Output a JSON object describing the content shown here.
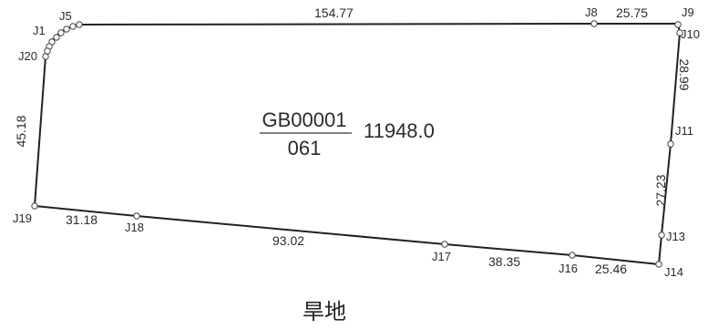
{
  "parcel": {
    "code": "GB00001",
    "number": "061",
    "area": "11948.0",
    "land_use": "旱地"
  },
  "points": [
    "J1",
    "J5",
    "J8",
    "J9",
    "J10",
    "J11",
    "J13",
    "J14",
    "J16",
    "J17",
    "J18",
    "J19",
    "J20"
  ],
  "edge_lengths": {
    "j5_j8": "154.77",
    "j8_j9": "25.75",
    "j10_j11": "28.99",
    "j11_j13": "27.23",
    "j14_j16": "25.46",
    "j16_j17": "38.35",
    "j17_j18": "93.02",
    "j18_j19": "31.18",
    "j19_j20": "45.18"
  }
}
